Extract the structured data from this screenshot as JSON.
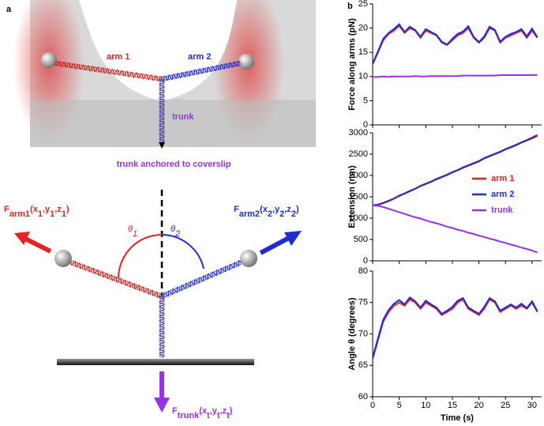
{
  "panels": {
    "a": "a",
    "b": "b"
  },
  "diagram": {
    "arm1": "arm 1",
    "arm2": "arm 2",
    "trunk": "trunk",
    "anchor": "trunk anchored to coverslip",
    "force_arm1": [
      {
        "text": "F"
      },
      {
        "sub": "arm1"
      },
      {
        "text": "(x"
      },
      {
        "sub": "1"
      },
      {
        "text": ",y"
      },
      {
        "sub": "1"
      },
      {
        "text": ",z"
      },
      {
        "sub": "1"
      },
      {
        "text": ")"
      }
    ],
    "force_arm2": [
      {
        "text": "F"
      },
      {
        "sub": "arm2"
      },
      {
        "text": "(x"
      },
      {
        "sub": "2"
      },
      {
        "text": ",y"
      },
      {
        "sub": "2"
      },
      {
        "text": ",z"
      },
      {
        "sub": "2"
      },
      {
        "text": ")"
      }
    ],
    "force_trunk": [
      {
        "text": "F"
      },
      {
        "sub": "trunk"
      },
      {
        "text": "(x"
      },
      {
        "sub": "t"
      },
      {
        "text": ",y"
      },
      {
        "sub": "t"
      },
      {
        "text": ",z"
      },
      {
        "sub": "t"
      },
      {
        "text": ")"
      }
    ],
    "theta1": [
      {
        "text": "θ"
      },
      {
        "sub": "1"
      }
    ],
    "theta2": [
      {
        "text": "θ"
      },
      {
        "sub": "2"
      }
    ]
  },
  "chart_data": [
    {
      "type": "line",
      "y_label": "Force along arms (pN)",
      "x": [
        0,
        1,
        2,
        3,
        4,
        5,
        6,
        7,
        8,
        9,
        10,
        11,
        12,
        13,
        14,
        15,
        16,
        17,
        18,
        19,
        20,
        21,
        22,
        23,
        24,
        25,
        26,
        27,
        28,
        29,
        30,
        31
      ],
      "xlim": [
        0,
        31.8
      ],
      "xticks": [
        0,
        5,
        10,
        15,
        20,
        25,
        30
      ],
      "ylim": [
        0,
        25
      ],
      "yticks": [
        0,
        5,
        10,
        15,
        20,
        25
      ],
      "series": [
        {
          "color": "#e8231f",
          "values": [
            12.5,
            15,
            17.5,
            18.8,
            19.5,
            20.5,
            19,
            20,
            19.5,
            18,
            19.5,
            19,
            18.5,
            17,
            16.5,
            17.5,
            18.5,
            19,
            20,
            18,
            17,
            18,
            20,
            19.5,
            17,
            18,
            18.5,
            19,
            19.5,
            18,
            19.5,
            18
          ]
        },
        {
          "color": "#1f2bd6",
          "values": [
            12.6,
            15.2,
            17.8,
            19,
            19.8,
            20.8,
            19.2,
            20.3,
            19.6,
            18.2,
            19.8,
            19.2,
            18.6,
            17.2,
            16.6,
            17.8,
            18.8,
            19.3,
            20.4,
            18.2,
            17.1,
            18.3,
            20.3,
            19.6,
            17.2,
            18.2,
            18.8,
            19.2,
            19.8,
            18.3,
            19.9,
            18.1
          ]
        },
        {
          "color": "#9b2ff0",
          "values": [
            9.9,
            9.9,
            10,
            9.9,
            10,
            10,
            10,
            10,
            10.1,
            10,
            10,
            10.1,
            10.1,
            10.1,
            10.1,
            10.1,
            10.1,
            10.2,
            10.2,
            10.2,
            10.2,
            10.2,
            10.2,
            10.2,
            10.3,
            10.3,
            10.3,
            10.3,
            10.3,
            10.3,
            10.3,
            10.3
          ]
        }
      ]
    },
    {
      "type": "line",
      "y_label": "Extension (nm)",
      "x": [
        0,
        1,
        2,
        3,
        4,
        5,
        6,
        7,
        8,
        9,
        10,
        11,
        12,
        13,
        14,
        15,
        16,
        17,
        18,
        19,
        20,
        21,
        22,
        23,
        24,
        25,
        26,
        27,
        28,
        29,
        30,
        31
      ],
      "xlim": [
        0,
        31.8
      ],
      "xticks": [
        0,
        5,
        10,
        15,
        20,
        25,
        30
      ],
      "ylim": [
        0,
        3000
      ],
      "yticks": [
        0,
        500,
        1000,
        1500,
        2000,
        2500,
        3000
      ],
      "legend": "right",
      "series": [
        {
          "name": "arm 1",
          "color": "#e8231f",
          "values": [
            1300,
            1320,
            1360,
            1410,
            1460,
            1530,
            1580,
            1640,
            1690,
            1760,
            1810,
            1860,
            1920,
            1970,
            2020,
            2080,
            2130,
            2190,
            2240,
            2290,
            2340,
            2410,
            2460,
            2510,
            2560,
            2620,
            2670,
            2720,
            2780,
            2830,
            2890,
            2950
          ]
        },
        {
          "name": "arm 2",
          "color": "#1f2bd6",
          "values": [
            1300,
            1315,
            1350,
            1400,
            1455,
            1520,
            1575,
            1630,
            1685,
            1750,
            1800,
            1850,
            1910,
            1960,
            2010,
            2070,
            2120,
            2180,
            2230,
            2280,
            2330,
            2400,
            2450,
            2500,
            2550,
            2610,
            2660,
            2710,
            2770,
            2820,
            2870,
            2930
          ]
        },
        {
          "name": "trunk",
          "color": "#9b2ff0",
          "values": [
            1300,
            1290,
            1260,
            1220,
            1180,
            1140,
            1100,
            1060,
            1020,
            990,
            950,
            910,
            880,
            840,
            800,
            770,
            730,
            700,
            660,
            630,
            590,
            560,
            520,
            490,
            450,
            420,
            380,
            350,
            310,
            280,
            240,
            190
          ]
        }
      ]
    },
    {
      "type": "line",
      "y_label": "Angle θ (degrees)",
      "x_label": "Time (s)",
      "x": [
        0,
        1,
        2,
        3,
        4,
        5,
        6,
        7,
        8,
        9,
        10,
        11,
        12,
        13,
        14,
        15,
        16,
        17,
        18,
        19,
        20,
        21,
        22,
        23,
        24,
        25,
        26,
        27,
        28,
        29,
        30,
        31
      ],
      "xlim": [
        0,
        31.8
      ],
      "xticks": [
        0,
        5,
        10,
        15,
        20,
        25,
        30
      ],
      "ylim": [
        60,
        80
      ],
      "yticks": [
        60,
        65,
        70,
        75,
        80
      ],
      "series": [
        {
          "color": "#e8231f",
          "values": [
            66,
            69,
            72,
            73.5,
            74.5,
            75,
            74.5,
            75.5,
            75,
            74,
            75,
            74.5,
            74,
            73,
            73.5,
            74,
            75,
            75.5,
            74,
            73.5,
            73,
            74,
            75.5,
            75,
            73.5,
            74,
            74.5,
            74,
            74.5,
            74,
            75,
            73.5
          ]
        },
        {
          "color": "#1f2bd6",
          "values": [
            66.2,
            69.3,
            72.3,
            73.8,
            74.8,
            75.4,
            74.7,
            75.8,
            75.2,
            74.2,
            75.3,
            74.7,
            74.2,
            73.2,
            73.7,
            74.3,
            75.3,
            75.7,
            74.2,
            73.7,
            73.2,
            74.3,
            75.7,
            75.2,
            73.7,
            74.2,
            74.7,
            74.2,
            74.8,
            74.1,
            75.2,
            73.6
          ]
        }
      ]
    }
  ]
}
